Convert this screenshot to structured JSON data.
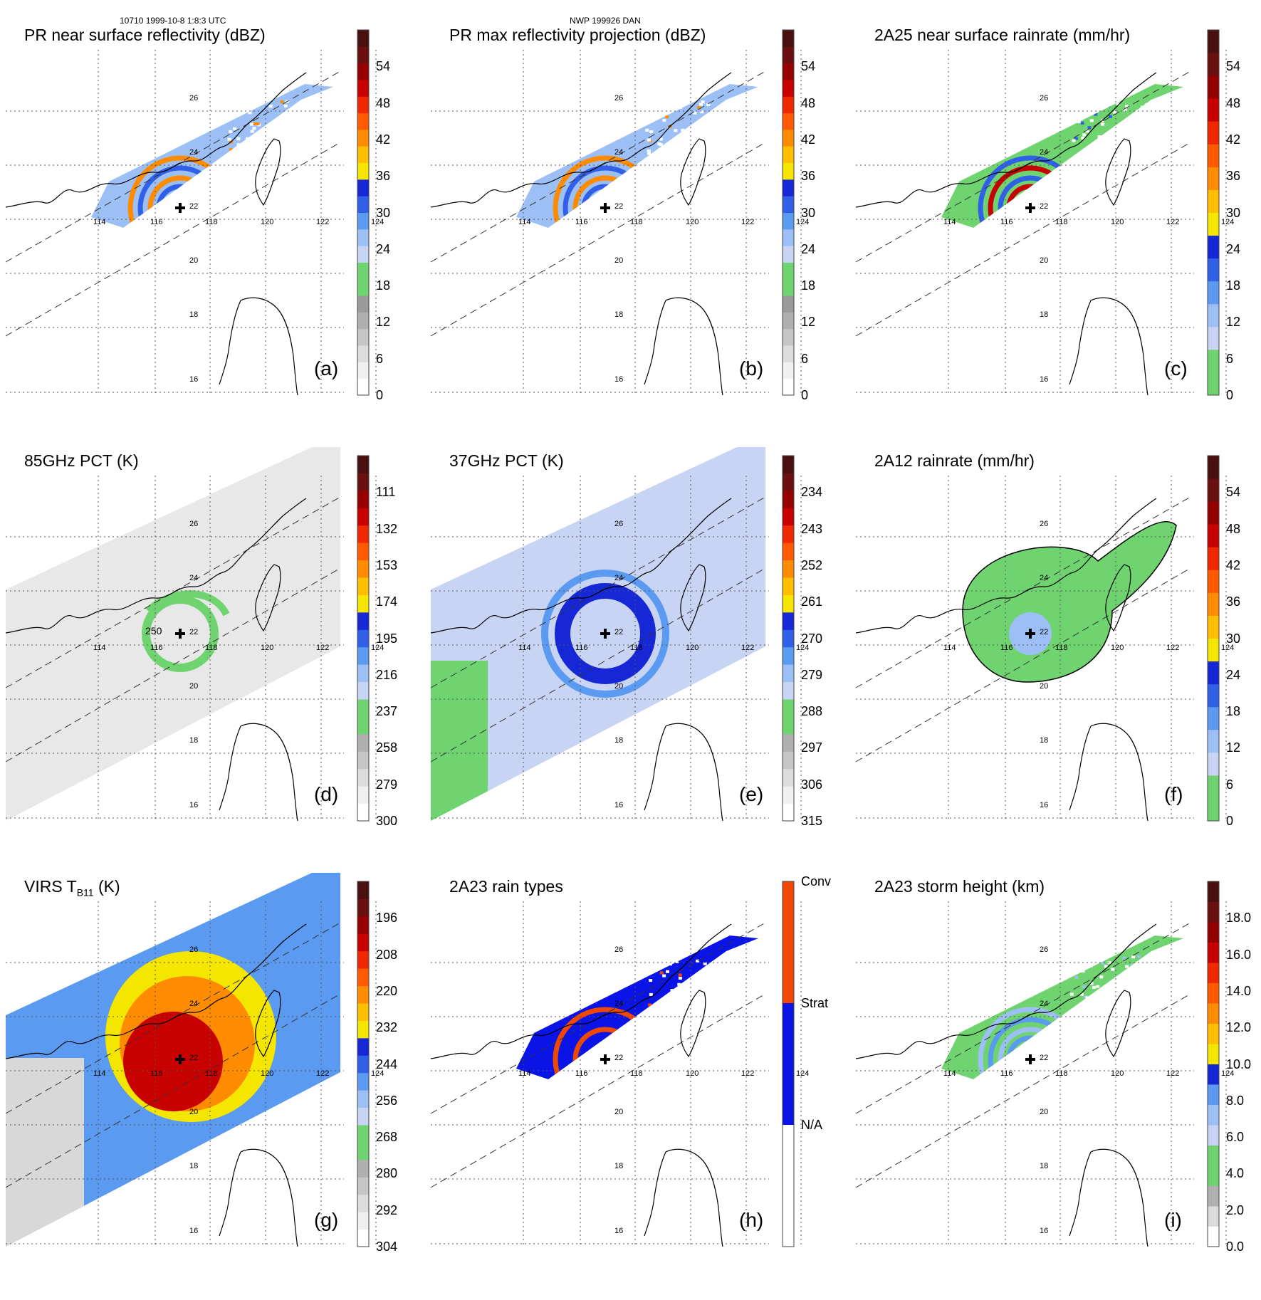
{
  "header": {
    "left": "10710 1999-10-8 1:8:3 UTC",
    "center": "NWP 199926 DAN"
  },
  "map": {
    "lon_labels": [
      "114",
      "116",
      "118",
      "120",
      "122",
      "124"
    ],
    "lat_labels": [
      "26",
      "24",
      "22",
      "20",
      "18",
      "16"
    ],
    "contour_label_d": "250"
  },
  "colors": {
    "grays": [
      "#ffffff",
      "#f0f0f0",
      "#dcdcdc",
      "#c6c6c6",
      "#b0b0b0",
      "#9a9a9a"
    ],
    "green": "#6fd46f",
    "blues": [
      "#c8d4f4",
      "#9cc0f5",
      "#5a9af0",
      "#3060e8",
      "#1628d6"
    ],
    "yellow": "#f5e600",
    "oranges": [
      "#ffbe00",
      "#ff8c00",
      "#ff5a00",
      "#f02800"
    ],
    "reds": [
      "#c80000",
      "#960000",
      "#6a1010",
      "#4a1010"
    ],
    "rain_types": {
      "na": "#ffffff",
      "strat": "#0a14e6",
      "conv": "#f04800"
    }
  },
  "panels": [
    {
      "id": "a",
      "title": "PR near surface reflectivity (dBZ)",
      "title_sub": "",
      "title_tail": "",
      "label": "(a)",
      "colorbar": "reflectivity",
      "ticks": [
        "54",
        "48",
        "42",
        "36",
        "30",
        "24",
        "18",
        "12",
        "6",
        "0"
      ],
      "tick_values": [
        54,
        48,
        42,
        36,
        30,
        24,
        18,
        12,
        6,
        0
      ],
      "scale_max": 60
    },
    {
      "id": "b",
      "title": "PR max reflectivity projection (dBZ)",
      "title_sub": "",
      "title_tail": "",
      "label": "(b)",
      "colorbar": "reflectivity",
      "ticks": [
        "54",
        "48",
        "42",
        "36",
        "30",
        "24",
        "18",
        "12",
        "6",
        "0"
      ],
      "tick_values": [
        54,
        48,
        42,
        36,
        30,
        24,
        18,
        12,
        6,
        0
      ],
      "scale_max": 60
    },
    {
      "id": "c",
      "title": "2A25 near surface rainrate (mm/hr)",
      "title_sub": "",
      "title_tail": "",
      "label": "(c)",
      "colorbar": "rain",
      "ticks": [
        "54",
        "48",
        "42",
        "36",
        "30",
        "24",
        "18",
        "12",
        "6",
        "0"
      ],
      "tick_values": [
        54,
        48,
        42,
        36,
        30,
        24,
        18,
        12,
        6,
        0
      ],
      "scale_max": 60
    },
    {
      "id": "d",
      "title": "85GHz PCT (K)",
      "title_sub": "",
      "title_tail": "",
      "label": "(d)",
      "colorbar": "tb",
      "ticks": [
        "111",
        "132",
        "153",
        "174",
        "195",
        "216",
        "237",
        "258",
        "279",
        "300"
      ],
      "tick_values": [
        111,
        132,
        153,
        174,
        195,
        216,
        237,
        258,
        279,
        300
      ],
      "scale_min": 90,
      "scale_max": 300
    },
    {
      "id": "e",
      "title": "37GHz PCT (K)",
      "title_sub": "",
      "title_tail": "",
      "label": "(e)",
      "colorbar": "tb",
      "ticks": [
        "234",
        "243",
        "252",
        "261",
        "270",
        "279",
        "288",
        "297",
        "306",
        "315"
      ],
      "tick_values": [
        234,
        243,
        252,
        261,
        270,
        279,
        288,
        297,
        306,
        315
      ],
      "scale_min": 225,
      "scale_max": 315
    },
    {
      "id": "f",
      "title": "2A12 rainrate (mm/hr)",
      "title_sub": "",
      "title_tail": "",
      "label": "(f)",
      "colorbar": "rain",
      "ticks": [
        "54",
        "48",
        "42",
        "36",
        "30",
        "24",
        "18",
        "12",
        "6",
        "0"
      ],
      "tick_values": [
        54,
        48,
        42,
        36,
        30,
        24,
        18,
        12,
        6,
        0
      ],
      "scale_max": 60
    },
    {
      "id": "g",
      "title": "VIRS T",
      "title_sub": "B11",
      "title_tail": " (K)",
      "label": "(g)",
      "colorbar": "tb",
      "ticks": [
        "196",
        "208",
        "220",
        "232",
        "244",
        "256",
        "268",
        "280",
        "292",
        "304"
      ],
      "tick_values": [
        196,
        208,
        220,
        232,
        244,
        256,
        268,
        280,
        292,
        304
      ],
      "scale_min": 184,
      "scale_max": 304
    },
    {
      "id": "h",
      "title": "2A23 rain types",
      "title_sub": "",
      "title_tail": "",
      "label": "(h)",
      "colorbar": "types",
      "ticks": [
        "Conv",
        "Strat",
        "N/A"
      ],
      "tick_values": [
        3,
        2,
        1
      ],
      "scale_max": 3
    },
    {
      "id": "i",
      "title": "2A23 storm height (km)",
      "title_sub": "",
      "title_tail": "",
      "label": "(i)",
      "colorbar": "height",
      "ticks": [
        "18.0",
        "16.0",
        "14.0",
        "12.0",
        "10.0",
        "8.0",
        "6.0",
        "4.0",
        "2.0",
        "0.0"
      ],
      "tick_values": [
        18,
        16,
        14,
        12,
        10,
        8,
        6,
        4,
        2,
        0
      ],
      "scale_max": 20
    }
  ]
}
